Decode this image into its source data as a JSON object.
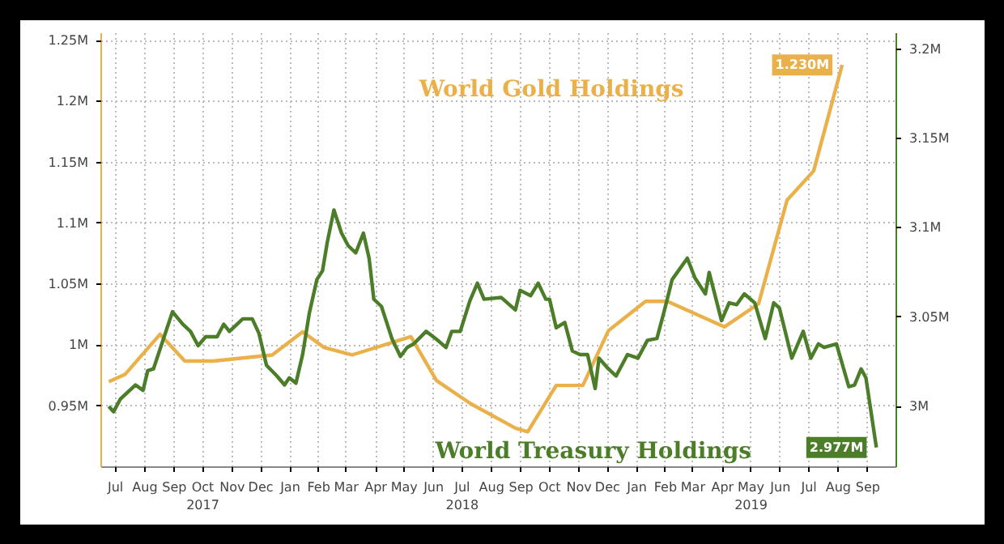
{
  "chart_data": {
    "type": "line",
    "xlim": [
      "2017-07-01",
      "2019-10-16"
    ],
    "xticks": [
      {
        "value": "2017-07-16",
        "label": "Jul"
      },
      {
        "value": "2017-08-16",
        "label": "Aug"
      },
      {
        "value": "2017-09-16",
        "label": "Sep"
      },
      {
        "value": "2017-10-16",
        "label": "Oct\n2017"
      },
      {
        "value": "2017-11-16",
        "label": "Nov"
      },
      {
        "value": "2017-12-16",
        "label": "Dec"
      },
      {
        "value": "2018-01-16",
        "label": "Jan"
      },
      {
        "value": "2018-02-15",
        "label": "Feb"
      },
      {
        "value": "2018-03-16",
        "label": "Mar"
      },
      {
        "value": "2018-04-16",
        "label": "Apr"
      },
      {
        "value": "2018-05-16",
        "label": "May"
      },
      {
        "value": "2018-06-16",
        "label": "Jun"
      },
      {
        "value": "2018-07-16",
        "label": "Jul\n2018"
      },
      {
        "value": "2018-08-16",
        "label": "Aug"
      },
      {
        "value": "2018-09-16",
        "label": "Sep"
      },
      {
        "value": "2018-10-16",
        "label": "Oct"
      },
      {
        "value": "2018-11-16",
        "label": "Nov"
      },
      {
        "value": "2018-12-16",
        "label": "Dec"
      },
      {
        "value": "2019-01-16",
        "label": "Jan"
      },
      {
        "value": "2019-02-15",
        "label": "Feb"
      },
      {
        "value": "2019-03-16",
        "label": "Mar"
      },
      {
        "value": "2019-04-16",
        "label": "Apr"
      },
      {
        "value": "2019-05-16",
        "label": "May\n2019"
      },
      {
        "value": "2019-06-16",
        "label": "Jun"
      },
      {
        "value": "2019-07-16",
        "label": "Jul"
      },
      {
        "value": "2019-08-16",
        "label": "Aug"
      },
      {
        "value": "2019-09-16",
        "label": "Sep"
      }
    ],
    "ylim": [
      0.9,
      1.256
    ],
    "yticks": [
      {
        "value": 0.95,
        "label": "0.95M"
      },
      {
        "value": 1.0,
        "label": "1M"
      },
      {
        "value": 1.05,
        "label": "1.05M"
      },
      {
        "value": 1.1,
        "label": "1.1M"
      },
      {
        "value": 1.15,
        "label": "1.15M"
      },
      {
        "value": 1.2,
        "label": "1.2M"
      },
      {
        "value": 1.25,
        "label": "1.25M"
      }
    ],
    "y2lim": [
      2.966,
      3.209
    ],
    "y2ticks": [
      {
        "value": 3.0,
        "label": "3M"
      },
      {
        "value": 3.05,
        "label": "3.05M"
      },
      {
        "value": 3.1,
        "label": "3.1M"
      },
      {
        "value": 3.15,
        "label": "3.15M"
      },
      {
        "value": 3.2,
        "label": "3.2M"
      }
    ],
    "grid": true,
    "legend": false,
    "series": [
      {
        "name": "World Gold Holdings",
        "color": "#eab04a",
        "axis": "y",
        "x": [
          "2017-07-09",
          "2017-07-26",
          "2017-09-01",
          "2017-09-27",
          "2017-10-27",
          "2017-12-28",
          "2018-01-29",
          "2018-02-21",
          "2018-03-22",
          "2018-05-23",
          "2018-06-19",
          "2018-07-25",
          "2018-09-10",
          "2018-09-23",
          "2018-10-23",
          "2018-11-20",
          "2018-12-17",
          "2019-01-25",
          "2019-02-17",
          "2019-04-18",
          "2019-05-24",
          "2019-06-23",
          "2019-07-21",
          "2019-08-20"
        ],
        "values": [
          0.97,
          0.976,
          1.009,
          0.987,
          0.987,
          0.992,
          1.011,
          0.998,
          0.992,
          1.007,
          0.971,
          0.952,
          0.932,
          0.929,
          0.967,
          0.967,
          1.012,
          1.036,
          1.036,
          1.015,
          1.034,
          1.119,
          1.143,
          1.23
        ],
        "value_labels": [
          null,
          null,
          null,
          null,
          null,
          null,
          null,
          null,
          null,
          null,
          null,
          null,
          null,
          null,
          null,
          null,
          null,
          null,
          null,
          null,
          null,
          null,
          null,
          "1.230M"
        ]
      },
      {
        "name": "World Treasury Holdings",
        "color": "#4c7d28",
        "axis": "y2",
        "x": [
          "2017-07-09",
          "2017-07-14",
          "2017-07-21",
          "2017-08-06",
          "2017-08-14",
          "2017-08-19",
          "2017-08-25",
          "2017-09-14",
          "2017-09-25",
          "2017-10-03",
          "2017-10-11",
          "2017-10-19",
          "2017-10-31",
          "2017-11-07",
          "2017-11-13",
          "2017-11-27",
          "2017-12-07",
          "2017-12-14",
          "2017-12-22",
          "2018-01-02",
          "2018-01-10",
          "2018-01-15",
          "2018-01-22",
          "2018-01-29",
          "2018-02-05",
          "2018-02-13",
          "2018-02-19",
          "2018-02-24",
          "2018-03-03",
          "2018-03-11",
          "2018-03-18",
          "2018-03-26",
          "2018-04-03",
          "2018-04-09",
          "2018-04-14",
          "2018-04-22",
          "2018-05-03",
          "2018-05-12",
          "2018-05-19",
          "2018-05-26",
          "2018-06-08",
          "2018-06-18",
          "2018-06-29",
          "2018-07-05",
          "2018-07-14",
          "2018-07-24",
          "2018-08-01",
          "2018-08-08",
          "2018-08-26",
          "2018-09-10",
          "2018-09-15",
          "2018-09-26",
          "2018-10-04",
          "2018-10-12",
          "2018-10-16",
          "2018-10-23",
          "2018-11-01",
          "2018-11-09",
          "2018-11-17",
          "2018-11-25",
          "2018-12-03",
          "2018-12-07",
          "2018-12-17",
          "2018-12-25",
          "2019-01-06",
          "2019-01-17",
          "2019-01-27",
          "2019-02-06",
          "2019-02-14",
          "2019-02-22",
          "2019-03-10",
          "2019-03-18",
          "2019-03-29",
          "2019-04-02",
          "2019-04-15",
          "2019-04-23",
          "2019-05-01",
          "2019-05-09",
          "2019-05-20",
          "2019-05-31",
          "2019-06-09",
          "2019-06-15",
          "2019-06-28",
          "2019-07-10",
          "2019-07-18",
          "2019-07-26",
          "2019-08-01",
          "2019-08-14",
          "2019-08-27",
          "2019-09-02",
          "2019-09-09",
          "2019-09-14",
          "2019-09-25"
        ],
        "values": [
          3.0,
          2.997,
          3.004,
          3.012,
          3.009,
          3.02,
          3.021,
          3.053,
          3.046,
          3.042,
          3.034,
          3.039,
          3.039,
          3.046,
          3.042,
          3.049,
          3.049,
          3.041,
          3.023,
          3.017,
          3.012,
          3.016,
          3.013,
          3.029,
          3.052,
          3.071,
          3.076,
          3.092,
          3.11,
          3.097,
          3.09,
          3.086,
          3.097,
          3.083,
          3.06,
          3.056,
          3.038,
          3.028,
          3.033,
          3.035,
          3.042,
          3.038,
          3.033,
          3.042,
          3.042,
          3.059,
          3.069,
          3.06,
          3.061,
          3.054,
          3.065,
          3.062,
          3.069,
          3.06,
          3.06,
          3.044,
          3.047,
          3.031,
          3.029,
          3.029,
          3.01,
          3.027,
          3.021,
          3.017,
          3.029,
          3.027,
          3.037,
          3.038,
          3.054,
          3.071,
          3.083,
          3.072,
          3.063,
          3.075,
          3.048,
          3.058,
          3.057,
          3.063,
          3.058,
          3.038,
          3.058,
          3.055,
          3.027,
          3.042,
          3.027,
          3.035,
          3.033,
          3.035,
          3.011,
          3.012,
          3.021,
          3.016,
          2.977
        ],
        "value_labels": [
          null,
          null,
          null,
          null,
          null,
          null,
          null,
          null,
          null,
          null,
          null,
          null,
          null,
          null,
          null,
          null,
          null,
          null,
          null,
          null,
          null,
          null,
          null,
          null,
          null,
          null,
          null,
          null,
          null,
          null,
          null,
          null,
          null,
          null,
          null,
          null,
          null,
          null,
          null,
          null,
          null,
          null,
          null,
          null,
          null,
          null,
          null,
          null,
          null,
          null,
          null,
          null,
          null,
          null,
          null,
          null,
          null,
          null,
          null,
          null,
          null,
          null,
          null,
          null,
          null,
          null,
          null,
          null,
          null,
          null,
          null,
          null,
          null,
          null,
          null,
          null,
          null,
          null,
          null,
          null,
          null,
          null,
          null,
          null,
          null,
          null,
          null,
          null,
          null,
          null,
          null,
          null,
          "2.977M"
        ]
      }
    ]
  }
}
